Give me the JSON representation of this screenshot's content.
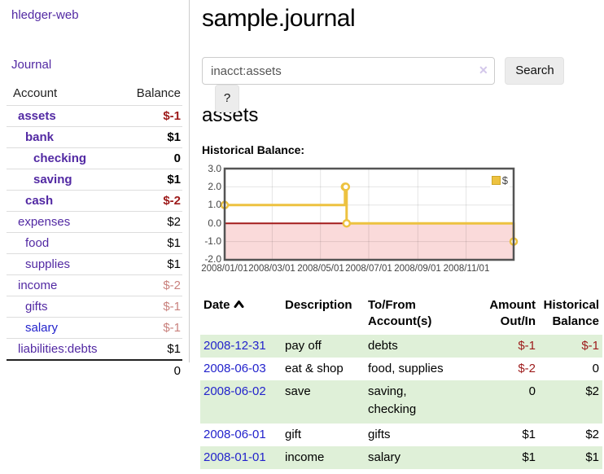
{
  "app": {
    "brand": "hledger-web",
    "nav_journal": "Journal"
  },
  "sidebar": {
    "columns": [
      "Account",
      "Balance"
    ],
    "accounts": [
      {
        "name": "assets",
        "balance": "$-1"
      },
      {
        "name": "bank",
        "balance": "$1"
      },
      {
        "name": "checking",
        "balance": "0"
      },
      {
        "name": "saving",
        "balance": "$1"
      },
      {
        "name": "cash",
        "balance": "$-2"
      },
      {
        "name": "expenses",
        "balance": "$2"
      },
      {
        "name": "food",
        "balance": "$1"
      },
      {
        "name": "supplies",
        "balance": "$1"
      },
      {
        "name": "income",
        "balance": "$-2"
      },
      {
        "name": "gifts",
        "balance": "$-1"
      },
      {
        "name": "salary",
        "balance": "$-1"
      },
      {
        "name": "liabilities:debts",
        "balance": "$1"
      }
    ],
    "total": "0"
  },
  "header": {
    "title": "sample.journal"
  },
  "search": {
    "value": "inacct:assets",
    "clear_icon": "✕",
    "button_label": "Search",
    "help_label": "?"
  },
  "main": {
    "account_heading": "assets",
    "chart_label": "Historical Balance:"
  },
  "chart_data": {
    "type": "line",
    "step": true,
    "title": "Historical Balance",
    "series": [
      {
        "name": "$",
        "color": "#edc240",
        "points": [
          [
            "2008-01-01",
            1
          ],
          [
            "2008-06-01",
            2
          ],
          [
            "2008-06-02",
            2
          ],
          [
            "2008-06-03",
            0
          ],
          [
            "2008-12-31",
            -1
          ]
        ]
      }
    ],
    "xrange": [
      "2008-01-01",
      "2008-12-31"
    ],
    "ylim": [
      -2,
      3
    ],
    "yticks": [
      "3.0",
      "2.0",
      "1.0",
      "0.0",
      "-1.0",
      "-2.0"
    ],
    "xticks": [
      "2008/01/01",
      "2008/03/01",
      "2008/05/01",
      "2008/07/01",
      "2008/09/01",
      "2008/11/01"
    ],
    "legend": [
      {
        "label": "$",
        "color": "#edc240"
      }
    ],
    "legend_position": "top-right",
    "grid": true,
    "negative_region_color": "#fadada",
    "zero_line_color": "#a31b1b"
  },
  "register": {
    "columns": [
      "Date",
      "Description",
      "To/From Account(s)",
      "Amount Out/In",
      "Historical Balance"
    ],
    "rows": [
      {
        "date": "2008-12-31",
        "description": "pay off",
        "accounts": "debts",
        "amount": "$-1",
        "balance": "$-1"
      },
      {
        "date": "2008-06-03",
        "description": "eat & shop",
        "accounts": "food, supplies",
        "amount": "$-2",
        "balance": "0"
      },
      {
        "date": "2008-06-02",
        "description": "save",
        "accounts": "saving, checking",
        "amount": "0",
        "balance": "$2"
      },
      {
        "date": "2008-06-01",
        "description": "gift",
        "accounts": "gifts",
        "amount": "$1",
        "balance": "$2"
      },
      {
        "date": "2008-01-01",
        "description": "income",
        "accounts": "salary",
        "amount": "$1",
        "balance": "$1"
      }
    ]
  }
}
